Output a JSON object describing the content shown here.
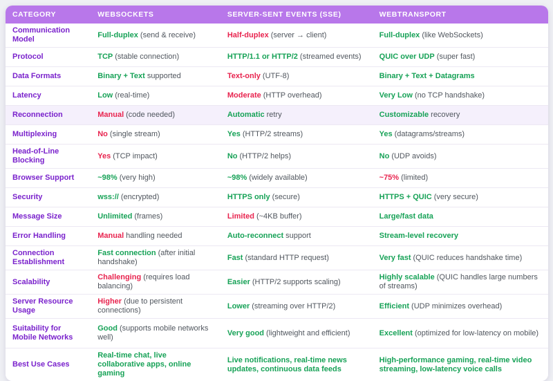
{
  "page": {
    "background": "#eff0f4"
  },
  "table": {
    "header": {
      "bg": "#b877ea",
      "text_color": "#ffffff",
      "columns": [
        {
          "label": "CATEGORY"
        },
        {
          "label": "WEBSOCKETS"
        },
        {
          "label": "SERVER-SENT EVENTS (SSE)"
        },
        {
          "label": "WEBTRANSPORT"
        }
      ]
    },
    "colors": {
      "category": "#7a22cc",
      "positive": "#17a257",
      "negative": "#e8244f",
      "muted": "#50565e",
      "divider": "#ece8f3",
      "highlight_row_bg": "#f5f0fc"
    },
    "rows": [
      {
        "category": "Communication Model",
        "highlight": false,
        "tall": false,
        "cells": [
          {
            "strong": "Full-duplex",
            "tone": "positive",
            "rest": "(send & receive)"
          },
          {
            "strong": "Half-duplex",
            "tone": "negative",
            "rest": "(server → client)"
          },
          {
            "strong": "Full-duplex",
            "tone": "positive",
            "rest": "(like WebSockets)"
          }
        ]
      },
      {
        "category": "Protocol",
        "highlight": false,
        "tall": false,
        "cells": [
          {
            "strong": "TCP",
            "tone": "positive",
            "rest": "(stable connection)"
          },
          {
            "strong": "HTTP/1.1 or HTTP/2",
            "tone": "positive",
            "rest": "(streamed events)"
          },
          {
            "strong": "QUIC over UDP",
            "tone": "positive",
            "rest": "(super fast)"
          }
        ]
      },
      {
        "category": "Data Formats",
        "highlight": false,
        "tall": false,
        "cells": [
          {
            "strong": "Binary + Text",
            "tone": "positive",
            "rest": "supported"
          },
          {
            "strong": "Text-only",
            "tone": "negative",
            "rest": "(UTF-8)"
          },
          {
            "strong": "Binary + Text + Datagrams",
            "tone": "positive",
            "rest": ""
          }
        ]
      },
      {
        "category": "Latency",
        "highlight": false,
        "tall": false,
        "cells": [
          {
            "strong": "Low",
            "tone": "positive",
            "rest": "(real-time)"
          },
          {
            "strong": "Moderate",
            "tone": "negative",
            "rest": "(HTTP overhead)"
          },
          {
            "strong": "Very Low",
            "tone": "positive",
            "rest": "(no TCP handshake)"
          }
        ]
      },
      {
        "category": "Reconnection",
        "highlight": true,
        "tall": false,
        "cells": [
          {
            "strong": "Manual",
            "tone": "negative",
            "rest": "(code needed)"
          },
          {
            "strong": "Automatic",
            "tone": "positive",
            "rest": "retry"
          },
          {
            "strong": "Customizable",
            "tone": "positive",
            "rest": "recovery"
          }
        ]
      },
      {
        "category": "Multiplexing",
        "highlight": false,
        "tall": false,
        "cells": [
          {
            "strong": "No",
            "tone": "negative",
            "rest": "(single stream)"
          },
          {
            "strong": "Yes",
            "tone": "positive",
            "rest": "(HTTP/2 streams)"
          },
          {
            "strong": "Yes",
            "tone": "positive",
            "rest": "(datagrams/streams)"
          }
        ]
      },
      {
        "category": "Head-of-Line Blocking",
        "highlight": false,
        "tall": false,
        "cells": [
          {
            "strong": "Yes",
            "tone": "negative",
            "rest": "(TCP impact)"
          },
          {
            "strong": "No",
            "tone": "positive",
            "rest": "(HTTP/2 helps)"
          },
          {
            "strong": "No",
            "tone": "positive",
            "rest": "(UDP avoids)"
          }
        ]
      },
      {
        "category": "Browser Support",
        "highlight": false,
        "tall": false,
        "cells": [
          {
            "strong": "~98%",
            "tone": "positive",
            "rest": "(very high)"
          },
          {
            "strong": "~98%",
            "tone": "positive",
            "rest": "(widely available)"
          },
          {
            "strong": "~75%",
            "tone": "negative",
            "rest": "(limited)"
          }
        ]
      },
      {
        "category": "Security",
        "highlight": false,
        "tall": false,
        "cells": [
          {
            "strong": "wss://",
            "tone": "positive",
            "rest": "(encrypted)"
          },
          {
            "strong": "HTTPS only",
            "tone": "positive",
            "rest": "(secure)"
          },
          {
            "strong": "HTTPS + QUIC",
            "tone": "positive",
            "rest": "(very secure)"
          }
        ]
      },
      {
        "category": "Message Size",
        "highlight": false,
        "tall": false,
        "cells": [
          {
            "strong": "Unlimited",
            "tone": "positive",
            "rest": "(frames)"
          },
          {
            "strong": "Limited",
            "tone": "negative",
            "rest": "(~4KB buffer)"
          },
          {
            "strong": "Large/fast data",
            "tone": "positive",
            "rest": ""
          }
        ]
      },
      {
        "category": "Error Handling",
        "highlight": false,
        "tall": false,
        "cells": [
          {
            "strong": "Manual",
            "tone": "negative",
            "rest": "handling needed"
          },
          {
            "strong": "Auto-reconnect",
            "tone": "positive",
            "rest": "support"
          },
          {
            "strong": "Stream-level recovery",
            "tone": "positive",
            "rest": ""
          }
        ]
      },
      {
        "category": "Connection Establishment",
        "highlight": false,
        "tall": false,
        "cells": [
          {
            "strong": "Fast connection",
            "tone": "positive",
            "rest": "(after initial handshake)"
          },
          {
            "strong": "Fast",
            "tone": "positive",
            "rest": "(standard HTTP request)"
          },
          {
            "strong": "Very fast",
            "tone": "positive",
            "rest": "(QUIC reduces handshake time)"
          }
        ]
      },
      {
        "category": "Scalability",
        "highlight": false,
        "tall": false,
        "cells": [
          {
            "strong": "Challenging",
            "tone": "negative",
            "rest": "(requires load balancing)"
          },
          {
            "strong": "Easier",
            "tone": "positive",
            "rest": "(HTTP/2 supports scaling)"
          },
          {
            "strong": "Highly scalable",
            "tone": "positive",
            "rest": "(QUIC handles large numbers of streams)"
          }
        ]
      },
      {
        "category": "Server Resource Usage",
        "highlight": false,
        "tall": false,
        "cells": [
          {
            "strong": "Higher",
            "tone": "negative",
            "rest": "(due to persistent connections)"
          },
          {
            "strong": "Lower",
            "tone": "positive",
            "rest": "(streaming over HTTP/2)"
          },
          {
            "strong": "Efficient",
            "tone": "positive",
            "rest": "(UDP minimizes overhead)"
          }
        ]
      },
      {
        "category": "Suitability for Mobile Networks",
        "highlight": false,
        "tall": true,
        "cells": [
          {
            "strong": "Good",
            "tone": "positive",
            "rest": "(supports mobile networks well)"
          },
          {
            "strong": "Very good",
            "tone": "positive",
            "rest": "(lightweight and efficient)"
          },
          {
            "strong": "Excellent",
            "tone": "positive",
            "rest": "(optimized for low-latency on mobile)"
          }
        ]
      },
      {
        "category": "Best Use Cases",
        "highlight": false,
        "tall": true,
        "cells": [
          {
            "strong": "Real-time chat, live collaborative apps, online gaming",
            "tone": "positive",
            "rest": ""
          },
          {
            "strong": "Live notifications, real-time news updates, continuous data feeds",
            "tone": "positive",
            "rest": ""
          },
          {
            "strong": "High-performance gaming, real-time video streaming, low-latency voice calls",
            "tone": "positive",
            "rest": ""
          }
        ]
      }
    ]
  }
}
